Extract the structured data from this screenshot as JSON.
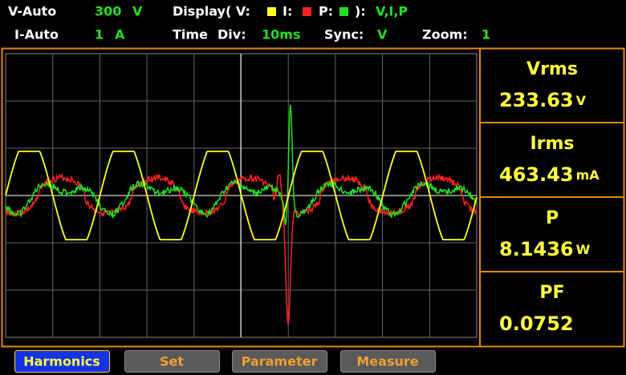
{
  "header": {
    "row1": {
      "v_range_label": "V-Auto",
      "v_range_value": "300",
      "v_range_unit": "V",
      "display_label": "Display( V:",
      "display_i": "I:",
      "display_p": "P:",
      "display_close": "):",
      "display_value": "V,I,P"
    },
    "row2": {
      "i_range_label": "I-Auto",
      "i_range_value": "1",
      "i_range_unit": "A",
      "time_label": "Time",
      "div_label": "Div:",
      "div_value": "10ms",
      "sync_label": "Sync:",
      "sync_value": "V",
      "zoom_label": "Zoom:",
      "zoom_value": "1"
    }
  },
  "readings": [
    {
      "label": "Vrms",
      "value": "233.63",
      "unit": "V"
    },
    {
      "label": "Irms",
      "value": "463.43",
      "unit": "mA"
    },
    {
      "label": "P",
      "value": "8.1436",
      "unit": "W"
    },
    {
      "label": "PF",
      "value": "0.0752",
      "unit": ""
    }
  ],
  "buttons": [
    "Harmonics",
    "Set",
    "Parameter",
    "Measure"
  ]
}
